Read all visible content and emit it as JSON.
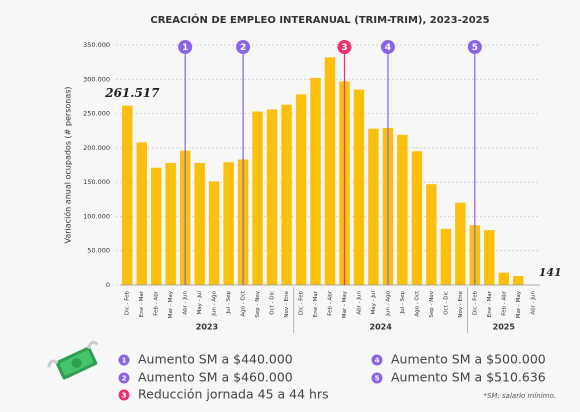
{
  "chart_data": {
    "type": "bar",
    "title": "CREACIÓN DE EMPLEO INTERANUAL (TRIM-TRIM), 2023-2025",
    "y_label": "Variación anual ocupados (# personas)",
    "categories": [
      "Dic - Feb",
      "Ene - Mar",
      "Feb - Abr",
      "Mar - May",
      "Abr - Jun",
      "May - Jul",
      "Jun - Ago",
      "Jul - Sep",
      "Ago - Oct",
      "Sep - Nov",
      "Oct - Dic",
      "Nov - Ene",
      "Dic - Feb",
      "Ene - Mar",
      "Feb - Abr",
      "Mar - May",
      "Abr - Jun",
      "May - Jul",
      "Jun - Ago",
      "Jul - Sep",
      "Ago - Oct",
      "Sep - Nov",
      "Oct - Dic",
      "Nov - Ene",
      "Dic - Feb",
      "Ene - Mar",
      "Feb - Abr",
      "Mar - May",
      "Abr - Jun"
    ],
    "values": [
      261517,
      208000,
      171000,
      178000,
      196000,
      178000,
      151000,
      179000,
      183000,
      253000,
      256000,
      263000,
      278000,
      302000,
      332000,
      297000,
      285000,
      228000,
      229000,
      219000,
      195000,
      147000,
      82000,
      120000,
      87000,
      80000,
      18000,
      13000,
      141
    ],
    "value_labels": [
      "261.517",
      null,
      null,
      null,
      null,
      null,
      null,
      null,
      null,
      null,
      null,
      null,
      null,
      null,
      null,
      null,
      null,
      null,
      null,
      null,
      null,
      null,
      null,
      null,
      null,
      null,
      null,
      null,
      "141"
    ],
    "color": "#fbbf0d",
    "years": [
      {
        "label": "2023",
        "start": 0,
        "end": 12
      },
      {
        "label": "2024",
        "start": 12,
        "end": 24
      },
      {
        "label": "2025",
        "start": 24,
        "end": 29
      }
    ],
    "ylim": [
      0,
      350000
    ],
    "yticks": [
      0,
      {
        "value": 50000,
        "label": "50.000"
      },
      {
        "value": 100000,
        "label": "100.000"
      },
      {
        "value": 150000,
        "label": "150.000"
      },
      {
        "value": 200000,
        "label": "200.000"
      },
      {
        "value": 250000,
        "label": "250.000"
      },
      {
        "value": 300000,
        "label": "300.000"
      },
      {
        "value": 350000,
        "label": "350.000"
      }
    ],
    "grid": true,
    "annotations": [
      {
        "at": 4,
        "label": "1",
        "color": "#8a63e8"
      },
      {
        "at": 8,
        "label": "2",
        "color": "#8a63e8"
      },
      {
        "at": 15,
        "label": "3",
        "color": "#e8336d"
      },
      {
        "at": 18,
        "label": "4",
        "color": "#8a63e8"
      },
      {
        "at": 24,
        "label": "5",
        "color": "#8a63e8"
      }
    ],
    "legend": [
      {
        "number": "1",
        "text": "Aumento SM a $440.000",
        "color": "#8a63e8"
      },
      {
        "number": "2",
        "text": "Aumento SM a $460.000",
        "color": "#8a63e8"
      },
      {
        "number": "3",
        "text": "Reducción jornada 45 a 44 hrs",
        "color": "#e8336d"
      },
      {
        "number": "4",
        "text": "Aumento SM a $500.000",
        "color": "#8a63e8"
      },
      {
        "number": "5",
        "text": "Aumento SM a $510.636",
        "color": "#8a63e8"
      }
    ],
    "note": "*SM: salario mínimo."
  }
}
